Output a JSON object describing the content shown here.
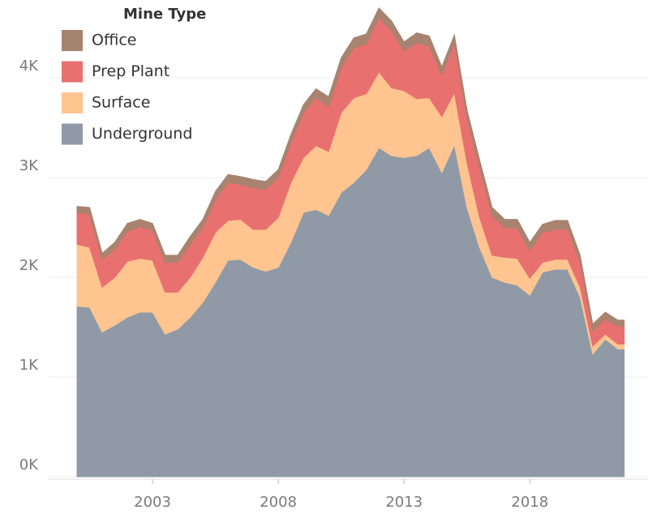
{
  "chart_data": {
    "type": "stacked_area",
    "legend_title": "Mine Type",
    "x": [
      2000,
      2000.5,
      2001,
      2001.5,
      2002,
      2002.5,
      2003,
      2003.5,
      2004,
      2004.5,
      2005,
      2005.5,
      2006,
      2006.5,
      2007,
      2007.5,
      2008,
      2008.5,
      2009,
      2009.5,
      2010,
      2010.5,
      2011,
      2011.5,
      2012,
      2012.5,
      2013,
      2013.5,
      2014,
      2014.5,
      2015,
      2015.5,
      2016,
      2016.5,
      2017,
      2017.5,
      2018,
      2018.5,
      2019,
      2019.5,
      2020,
      2020.5,
      2021,
      2021.5,
      2021.75
    ],
    "series": [
      {
        "name": "Office",
        "color": "#a8836f",
        "values": [
          60,
          70,
          60,
          70,
          80,
          70,
          70,
          70,
          70,
          80,
          80,
          80,
          80,
          80,
          80,
          80,
          80,
          80,
          80,
          90,
          100,
          100,
          100,
          100,
          100,
          100,
          90,
          100,
          100,
          80,
          80,
          80,
          80,
          80,
          80,
          90,
          80,
          80,
          90,
          90,
          70,
          70,
          70,
          60,
          60
        ]
      },
      {
        "name": "Prep Plant",
        "color": "#e8706f",
        "values": [
          320,
          330,
          280,
          280,
          300,
          320,
          300,
          300,
          300,
          330,
          300,
          330,
          380,
          350,
          420,
          400,
          400,
          400,
          450,
          480,
          450,
          450,
          500,
          500,
          540,
          570,
          400,
          560,
          520,
          420,
          500,
          450,
          500,
          400,
          300,
          300,
          280,
          300,
          300,
          300,
          250,
          150,
          150,
          180,
          180
        ]
      },
      {
        "name": "Surface",
        "color": "#ffc48f",
        "values": [
          620,
          600,
          450,
          480,
          560,
          540,
          520,
          420,
          370,
          400,
          450,
          500,
          400,
          400,
          380,
          420,
          500,
          600,
          550,
          640,
          640,
          800,
          850,
          760,
          760,
          680,
          670,
          570,
          500,
          560,
          520,
          450,
          300,
          220,
          250,
          270,
          170,
          100,
          100,
          100,
          100,
          80,
          50,
          50,
          50
        ]
      },
      {
        "name": "Underground",
        "color": "#8f9aa6",
        "values": [
          1710,
          1700,
          1450,
          1520,
          1600,
          1650,
          1650,
          1430,
          1480,
          1600,
          1750,
          1950,
          2170,
          2180,
          2100,
          2060,
          2100,
          2350,
          2650,
          2680,
          2620,
          2850,
          2950,
          3080,
          3300,
          3220,
          3200,
          3220,
          3300,
          3050,
          3330,
          2700,
          2300,
          2000,
          1950,
          1920,
          1820,
          2050,
          2080,
          2080,
          1800,
          1230,
          1380,
          1280,
          1280
        ]
      }
    ],
    "xlim": [
      1999,
      2022.6
    ],
    "xticks": [
      2003,
      2008,
      2013,
      2018
    ],
    "ylim": [
      0,
      4780
    ],
    "yticks": [
      {
        "value": 0,
        "label": "0K"
      },
      {
        "value": 1000,
        "label": "1K"
      },
      {
        "value": 2000,
        "label": "2K"
      },
      {
        "value": 3000,
        "label": "3K"
      },
      {
        "value": 4000,
        "label": "4K"
      }
    ],
    "grid": true
  }
}
